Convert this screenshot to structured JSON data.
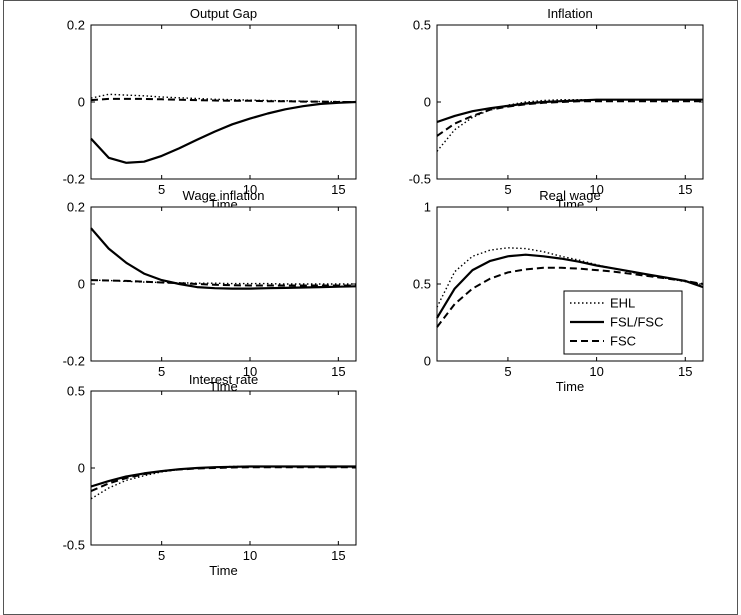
{
  "chart_data": [
    {
      "type": "line",
      "title": "Output Gap",
      "xlabel": "Time",
      "ylabel": "",
      "xlim": [
        1,
        16
      ],
      "ylim": [
        -0.2,
        0.2
      ],
      "xticks": [
        "5",
        "10",
        "15"
      ],
      "yticks": [
        "0.2",
        "0",
        "-0.2"
      ],
      "x": [
        1,
        2,
        3,
        4,
        5,
        6,
        7,
        8,
        9,
        10,
        11,
        12,
        13,
        14,
        15,
        16
      ],
      "series": [
        {
          "name": "EHL",
          "style": "dotted",
          "values": [
            0.01,
            0.02,
            0.018,
            0.016,
            0.013,
            0.011,
            0.009,
            0.007,
            0.006,
            0.005,
            0.004,
            0.003,
            0.002,
            0.001,
            0.001,
            0.0
          ]
        },
        {
          "name": "FSL/FSC",
          "style": "solid",
          "values": [
            -0.095,
            -0.145,
            -0.158,
            -0.155,
            -0.14,
            -0.12,
            -0.098,
            -0.077,
            -0.058,
            -0.043,
            -0.03,
            -0.019,
            -0.011,
            -0.005,
            -0.002,
            0.0
          ]
        },
        {
          "name": "FSC",
          "style": "dashed",
          "values": [
            0.005,
            0.008,
            0.008,
            0.008,
            0.007,
            0.006,
            0.005,
            0.004,
            0.003,
            0.003,
            0.002,
            0.002,
            0.001,
            0.001,
            0.0,
            0.0
          ]
        }
      ]
    },
    {
      "type": "line",
      "title": "Inflation",
      "xlabel": "Time",
      "ylabel": "",
      "xlim": [
        1,
        16
      ],
      "ylim": [
        -0.5,
        0.5
      ],
      "xticks": [
        "5",
        "10",
        "15"
      ],
      "yticks": [
        "0.5",
        "0",
        "-0.5"
      ],
      "x": [
        1,
        2,
        3,
        4,
        5,
        6,
        7,
        8,
        9,
        10,
        11,
        12,
        13,
        14,
        15,
        16
      ],
      "series": [
        {
          "name": "EHL",
          "style": "dotted",
          "values": [
            -0.32,
            -0.18,
            -0.1,
            -0.05,
            -0.02,
            0.0,
            0.01,
            0.015,
            0.015,
            0.015,
            0.015,
            0.015,
            0.015,
            0.015,
            0.015,
            0.015
          ]
        },
        {
          "name": "FSL/FSC",
          "style": "solid",
          "values": [
            -0.13,
            -0.09,
            -0.06,
            -0.04,
            -0.025,
            -0.01,
            0.0,
            0.005,
            0.01,
            0.015,
            0.015,
            0.015,
            0.015,
            0.015,
            0.015,
            0.015
          ]
        },
        {
          "name": "FSC",
          "style": "dashed",
          "values": [
            -0.22,
            -0.14,
            -0.09,
            -0.05,
            -0.03,
            -0.015,
            -0.005,
            0.0,
            0.005,
            0.005,
            0.005,
            0.005,
            0.005,
            0.005,
            0.005,
            0.005
          ]
        }
      ]
    },
    {
      "type": "line",
      "title": "Wage inflation",
      "xlabel": "Time",
      "ylabel": "",
      "xlim": [
        1,
        16
      ],
      "ylim": [
        -0.2,
        0.2
      ],
      "xticks": [
        "5",
        "10",
        "15"
      ],
      "yticks": [
        "0.2",
        "0",
        "-0.2"
      ],
      "x": [
        1,
        2,
        3,
        4,
        5,
        6,
        7,
        8,
        9,
        10,
        11,
        12,
        13,
        14,
        15,
        16
      ],
      "series": [
        {
          "name": "EHL",
          "style": "dotted",
          "values": [
            0.01,
            0.009,
            0.007,
            0.005,
            0.004,
            0.003,
            0.002,
            0.002,
            0.001,
            0.001,
            0.001,
            0.0,
            0.0,
            0.0,
            0.0,
            0.0
          ]
        },
        {
          "name": "FSL/FSC",
          "style": "solid",
          "values": [
            0.145,
            0.092,
            0.055,
            0.027,
            0.01,
            0.0,
            -0.008,
            -0.011,
            -0.012,
            -0.012,
            -0.011,
            -0.01,
            -0.009,
            -0.008,
            -0.007,
            -0.006
          ]
        },
        {
          "name": "FSC",
          "style": "dashed",
          "values": [
            0.01,
            0.009,
            0.008,
            0.006,
            0.004,
            0.002,
            0.0,
            -0.002,
            -0.003,
            -0.004,
            -0.004,
            -0.004,
            -0.004,
            -0.004,
            -0.004,
            -0.004
          ]
        }
      ]
    },
    {
      "type": "line",
      "title": "Real wage",
      "xlabel": "Time",
      "ylabel": "",
      "xlim": [
        1,
        16
      ],
      "ylim": [
        0,
        1
      ],
      "xticks": [
        "5",
        "10",
        "15"
      ],
      "yticks": [
        "1",
        "0.5",
        "0"
      ],
      "legend": "right",
      "x": [
        1,
        2,
        3,
        4,
        5,
        6,
        7,
        8,
        9,
        10,
        11,
        12,
        13,
        14,
        15,
        16
      ],
      "series": [
        {
          "name": "EHL",
          "style": "dotted",
          "values": [
            0.35,
            0.58,
            0.68,
            0.72,
            0.735,
            0.73,
            0.71,
            0.68,
            0.655,
            0.625,
            0.6,
            0.575,
            0.555,
            0.535,
            0.515,
            0.5
          ]
        },
        {
          "name": "FSL/FSC",
          "style": "solid",
          "values": [
            0.28,
            0.47,
            0.59,
            0.65,
            0.68,
            0.69,
            0.68,
            0.665,
            0.645,
            0.62,
            0.6,
            0.58,
            0.56,
            0.54,
            0.52,
            0.48
          ]
        },
        {
          "name": "FSC",
          "style": "dashed",
          "values": [
            0.22,
            0.37,
            0.47,
            0.535,
            0.575,
            0.595,
            0.605,
            0.605,
            0.6,
            0.59,
            0.58,
            0.565,
            0.55,
            0.535,
            0.52,
            0.5
          ]
        }
      ]
    },
    {
      "type": "line",
      "title": "Interest rate",
      "xlabel": "Time",
      "ylabel": "",
      "xlim": [
        1,
        16
      ],
      "ylim": [
        -0.5,
        0.5
      ],
      "xticks": [
        "5",
        "10",
        "15"
      ],
      "yticks": [
        "0.5",
        "0",
        "-0.5"
      ],
      "x": [
        1,
        2,
        3,
        4,
        5,
        6,
        7,
        8,
        9,
        10,
        11,
        12,
        13,
        14,
        15,
        16
      ],
      "series": [
        {
          "name": "EHL",
          "style": "dotted",
          "values": [
            -0.2,
            -0.13,
            -0.08,
            -0.05,
            -0.025,
            -0.01,
            0.0,
            0.005,
            0.01,
            0.01,
            0.01,
            0.01,
            0.01,
            0.01,
            0.01,
            0.01
          ]
        },
        {
          "name": "FSL/FSC",
          "style": "solid",
          "values": [
            -0.12,
            -0.085,
            -0.055,
            -0.035,
            -0.02,
            -0.008,
            0.0,
            0.005,
            0.008,
            0.01,
            0.01,
            0.01,
            0.01,
            0.01,
            0.01,
            0.01
          ]
        },
        {
          "name": "FSC",
          "style": "dashed",
          "values": [
            -0.15,
            -0.1,
            -0.065,
            -0.04,
            -0.02,
            -0.01,
            -0.003,
            0.0,
            0.003,
            0.005,
            0.005,
            0.005,
            0.005,
            0.005,
            0.005,
            0.005
          ]
        }
      ]
    }
  ],
  "legend": [
    {
      "label": "EHL",
      "style": "dotted"
    },
    {
      "label": "FSL/FSC",
      "style": "solid"
    },
    {
      "label": "FSC",
      "style": "dashed"
    }
  ]
}
